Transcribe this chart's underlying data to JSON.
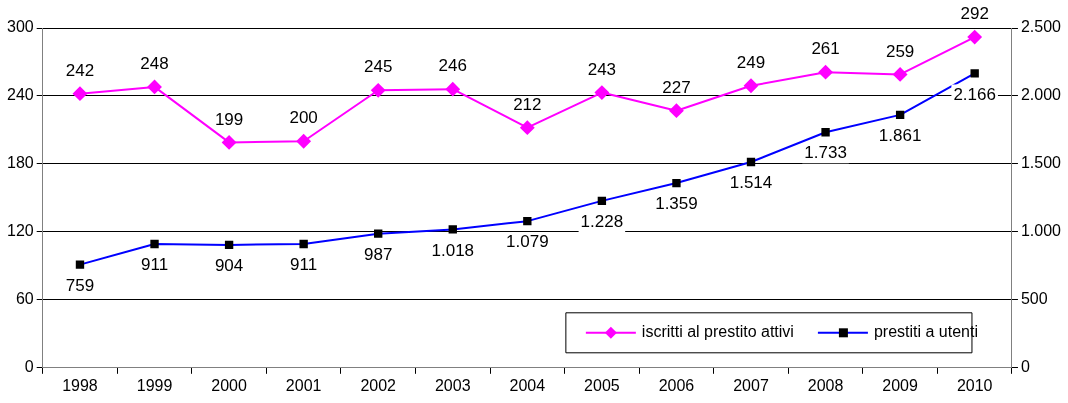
{
  "chart_data": {
    "type": "line",
    "categories": [
      "1998",
      "1999",
      "2000",
      "2001",
      "2002",
      "2003",
      "2004",
      "2005",
      "2006",
      "2007",
      "2008",
      "2009",
      "2010"
    ],
    "series": [
      {
        "name": "iscritti al prestito attivi",
        "color": "#ff00ff",
        "marker": "diamond",
        "values": [
          242,
          248,
          199,
          200,
          245,
          246,
          212,
          243,
          227,
          249,
          261,
          259,
          292
        ]
      },
      {
        "name": "prestiti a utenti",
        "color": "#0000ff",
        "marker": "square",
        "axis": "y2",
        "values": [
          759,
          911,
          904,
          911,
          987,
          1018,
          1079,
          1228,
          1359,
          1514,
          1733,
          1861,
          2166
        ],
        "value_labels": [
          "759",
          "911",
          "904",
          "911",
          "987",
          "1.018",
          "1.079",
          "1.228",
          "1.359",
          "1.514",
          "1.733",
          "1.861",
          "2.166"
        ]
      }
    ],
    "ylim": [
      0,
      300
    ],
    "yticks": [
      0,
      60,
      120,
      180,
      240,
      300
    ],
    "y2lim": [
      0,
      2500
    ],
    "y2ticks": [
      0,
      {
        "value": 500,
        "label": "500"
      },
      {
        "value": 1000,
        "label": "1.000"
      },
      {
        "value": 1500,
        "label": "1.500"
      },
      {
        "value": 2000,
        "label": "2.000"
      },
      {
        "value": 2500,
        "label": "2.500"
      }
    ],
    "grid": "y",
    "legend": "bottom right",
    "data_labels": true,
    "line_style": "solid"
  }
}
